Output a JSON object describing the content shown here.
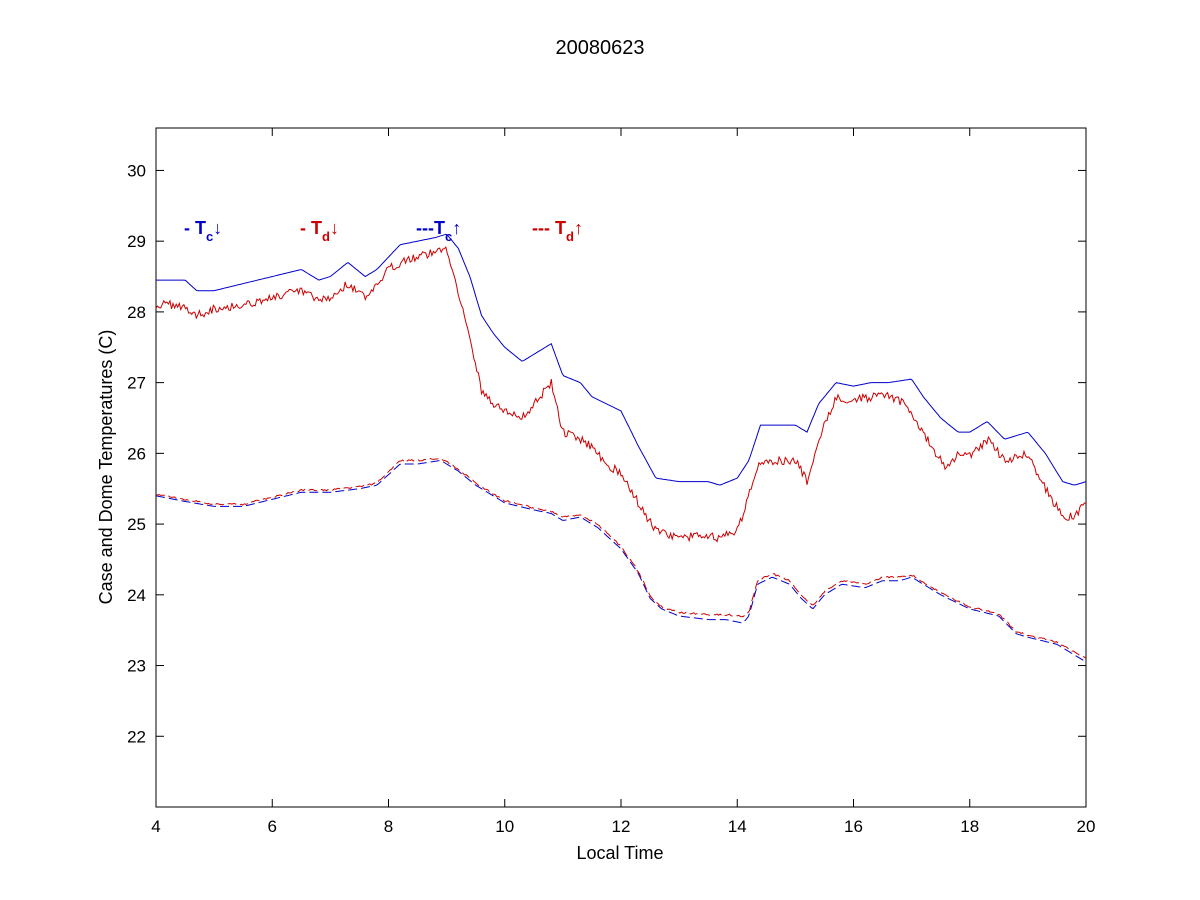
{
  "chart_data": {
    "type": "line",
    "title": "20080623",
    "xlabel": "Local Time",
    "ylabel": "Case and Dome Temperatures (C)",
    "xlim": [
      4,
      20
    ],
    "ylim": [
      21,
      30.6
    ],
    "xticks": [
      4,
      6,
      8,
      10,
      12,
      14,
      16,
      18,
      20
    ],
    "yticks": [
      22,
      23,
      24,
      25,
      26,
      27,
      28,
      29,
      30
    ],
    "grid": false,
    "legend": [
      {
        "prefix": "- T",
        "sub": "c",
        "arrow": "↓",
        "color": "#0000cc"
      },
      {
        "prefix": "- T",
        "sub": "d",
        "arrow": "↓",
        "color": "#cc0000"
      },
      {
        "prefix": "---T",
        "sub": "c",
        "arrow": "↑",
        "color": "#0000cc"
      },
      {
        "prefix": "--- T",
        "sub": "d",
        "arrow": "↑",
        "color": "#cc0000"
      }
    ],
    "series": [
      {
        "color": "#0000cc",
        "style": "solid",
        "noise": 0,
        "x": [
          4.0,
          4.5,
          4.7,
          5.0,
          5.5,
          6.0,
          6.5,
          6.8,
          7.0,
          7.3,
          7.6,
          7.8,
          8.2,
          8.5,
          8.8,
          9.0,
          9.2,
          9.4,
          9.6,
          9.8,
          10.0,
          10.3,
          10.5,
          10.8,
          11.0,
          11.3,
          11.5,
          12.0,
          12.3,
          12.6,
          13.0,
          13.5,
          13.7,
          14.0,
          14.2,
          14.4,
          14.6,
          15.0,
          15.2,
          15.4,
          15.7,
          16.0,
          16.3,
          16.6,
          17.0,
          17.2,
          17.5,
          17.8,
          18.0,
          18.3,
          18.6,
          19.0,
          19.3,
          19.6,
          19.8,
          20.0
        ],
        "y": [
          28.45,
          28.45,
          28.3,
          28.3,
          28.4,
          28.5,
          28.6,
          28.45,
          28.5,
          28.7,
          28.5,
          28.6,
          28.95,
          29.0,
          29.05,
          29.1,
          28.9,
          28.5,
          27.95,
          27.7,
          27.5,
          27.3,
          27.4,
          27.55,
          27.1,
          27.0,
          26.8,
          26.6,
          26.1,
          25.65,
          25.6,
          25.6,
          25.55,
          25.65,
          25.9,
          26.4,
          26.4,
          26.4,
          26.3,
          26.7,
          27.0,
          26.95,
          27.0,
          27.0,
          27.05,
          26.8,
          26.5,
          26.3,
          26.3,
          26.45,
          26.2,
          26.3,
          26.0,
          25.6,
          25.55,
          25.6
        ]
      },
      {
        "color": "#cc0000",
        "style": "solid",
        "noise": 0.06,
        "x": [
          4.0,
          4.4,
          4.7,
          5.0,
          5.5,
          6.0,
          6.5,
          6.8,
          7.0,
          7.3,
          7.6,
          7.8,
          8.0,
          8.3,
          8.6,
          8.8,
          9.0,
          9.2,
          9.4,
          9.6,
          9.8,
          10.0,
          10.3,
          10.5,
          10.8,
          11.0,
          11.3,
          11.5,
          11.7,
          12.0,
          12.3,
          12.6,
          13.0,
          13.5,
          13.7,
          14.0,
          14.2,
          14.4,
          14.6,
          15.0,
          15.2,
          15.4,
          15.7,
          16.0,
          16.3,
          16.6,
          16.9,
          17.2,
          17.4,
          17.6,
          17.8,
          18.0,
          18.3,
          18.6,
          19.0,
          19.3,
          19.6,
          19.8,
          20.0
        ],
        "y": [
          28.1,
          28.1,
          27.95,
          28.05,
          28.1,
          28.2,
          28.3,
          28.15,
          28.2,
          28.4,
          28.2,
          28.35,
          28.6,
          28.75,
          28.8,
          28.85,
          28.9,
          28.3,
          27.6,
          26.9,
          26.7,
          26.6,
          26.5,
          26.7,
          27.0,
          26.3,
          26.2,
          26.1,
          25.9,
          25.7,
          25.3,
          24.9,
          24.8,
          24.85,
          24.8,
          24.9,
          25.4,
          25.9,
          25.9,
          25.9,
          25.6,
          26.2,
          26.8,
          26.75,
          26.8,
          26.8,
          26.7,
          26.3,
          26.0,
          25.8,
          26.0,
          25.95,
          26.2,
          25.9,
          26.0,
          25.5,
          25.1,
          25.1,
          25.35
        ]
      },
      {
        "color": "#0000cc",
        "style": "dashed",
        "noise": 0,
        "x": [
          4.0,
          4.5,
          5.0,
          5.5,
          6.0,
          6.5,
          7.0,
          7.5,
          7.8,
          8.2,
          8.5,
          8.9,
          9.2,
          9.5,
          10.0,
          10.5,
          10.8,
          11.0,
          11.3,
          11.6,
          12.0,
          12.3,
          12.5,
          12.7,
          13.0,
          13.5,
          13.8,
          14.1,
          14.2,
          14.35,
          14.6,
          14.9,
          15.1,
          15.3,
          15.5,
          15.8,
          16.2,
          16.5,
          16.8,
          17.0,
          17.5,
          18.0,
          18.5,
          18.8,
          19.0,
          19.5,
          20.0
        ],
        "y": [
          25.4,
          25.32,
          25.25,
          25.25,
          25.35,
          25.45,
          25.45,
          25.5,
          25.55,
          25.85,
          25.85,
          25.9,
          25.75,
          25.55,
          25.3,
          25.2,
          25.15,
          25.05,
          25.1,
          24.95,
          24.65,
          24.3,
          23.95,
          23.8,
          23.7,
          23.65,
          23.65,
          23.6,
          23.7,
          24.15,
          24.25,
          24.15,
          23.95,
          23.8,
          24.0,
          24.15,
          24.1,
          24.2,
          24.2,
          24.25,
          24.0,
          23.8,
          23.7,
          23.45,
          23.4,
          23.3,
          23.05
        ]
      },
      {
        "color": "#cc0000",
        "style": "dashed",
        "noise": 0.012,
        "x": [
          4.0,
          4.5,
          5.0,
          5.5,
          6.0,
          6.5,
          7.0,
          7.5,
          7.8,
          8.2,
          8.5,
          8.9,
          9.2,
          9.5,
          10.0,
          10.5,
          10.8,
          11.0,
          11.3,
          11.6,
          12.0,
          12.3,
          12.5,
          12.7,
          13.0,
          13.5,
          13.8,
          14.1,
          14.2,
          14.35,
          14.6,
          14.9,
          15.1,
          15.3,
          15.5,
          15.8,
          16.2,
          16.5,
          16.8,
          17.0,
          17.5,
          18.0,
          18.5,
          18.8,
          19.0,
          19.5,
          20.0
        ],
        "y": [
          25.42,
          25.35,
          25.28,
          25.28,
          25.38,
          25.48,
          25.48,
          25.53,
          25.58,
          25.9,
          25.9,
          25.93,
          25.78,
          25.58,
          25.33,
          25.23,
          25.18,
          25.1,
          25.13,
          25.0,
          24.68,
          24.33,
          23.98,
          23.83,
          23.75,
          23.72,
          23.72,
          23.7,
          23.75,
          24.2,
          24.3,
          24.2,
          24.0,
          23.85,
          24.05,
          24.2,
          24.15,
          24.25,
          24.25,
          24.28,
          24.03,
          23.83,
          23.73,
          23.48,
          23.43,
          23.33,
          23.1
        ]
      }
    ]
  }
}
